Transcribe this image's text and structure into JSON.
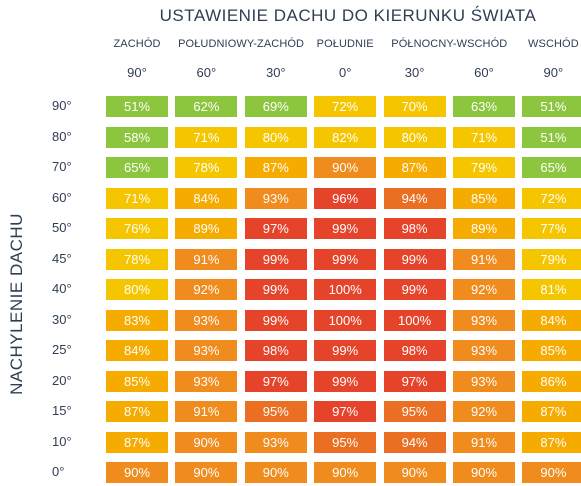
{
  "title": "USTAWIENIE DACHU DO KIERUNKU ŚWIATA",
  "ylabel": "NACHYLENIE DACHU",
  "directions": [
    "ZACHÓD",
    "POŁUDNIOWY-ZACHÓD",
    "POŁUDNIE",
    "PÓŁNOCNY-WSCHÓD",
    "WSCHÓD"
  ],
  "direction_columns": [
    0,
    1.5,
    3,
    4.5,
    6
  ],
  "azimuths": [
    "90°",
    "60°",
    "30°",
    "0°",
    "30°",
    "60°",
    "90°"
  ],
  "chart_data": {
    "type": "heatmap",
    "title": "USTAWIENIE DACHU DO KIERUNKU ŚWIATA",
    "ylabel": "NACHYLENIE DACHU",
    "x_categories": [
      "90°",
      "60°",
      "30°",
      "0°",
      "30°",
      "60°",
      "90°"
    ],
    "y_categories": [
      "90°",
      "80°",
      "70°",
      "60°",
      "50°",
      "45°",
      "40°",
      "30°",
      "25°",
      "20°",
      "15°",
      "10°",
      "0°"
    ],
    "unit": "%",
    "values": [
      [
        51,
        62,
        69,
        72,
        70,
        63,
        51
      ],
      [
        58,
        71,
        80,
        82,
        80,
        71,
        51
      ],
      [
        65,
        78,
        87,
        90,
        87,
        79,
        65
      ],
      [
        71,
        84,
        93,
        96,
        94,
        85,
        72
      ],
      [
        76,
        89,
        97,
        99,
        98,
        89,
        77
      ],
      [
        78,
        91,
        99,
        99,
        99,
        91,
        79
      ],
      [
        80,
        92,
        99,
        100,
        99,
        92,
        81
      ],
      [
        83,
        93,
        99,
        100,
        100,
        93,
        84
      ],
      [
        84,
        93,
        98,
        99,
        98,
        93,
        85
      ],
      [
        85,
        93,
        97,
        99,
        97,
        93,
        86
      ],
      [
        87,
        91,
        95,
        97,
        95,
        92,
        87
      ],
      [
        87,
        90,
        93,
        95,
        94,
        91,
        87
      ],
      [
        90,
        90,
        90,
        90,
        90,
        90,
        90
      ]
    ]
  },
  "colors": {
    "green": "#8cc63e",
    "yellow": "#f5c600",
    "light_orange": "#f6ab00",
    "orange": "#f08c1e",
    "dark_orange": "#eb6f22",
    "red": "#e5432a",
    "text": "#2f3d55"
  }
}
